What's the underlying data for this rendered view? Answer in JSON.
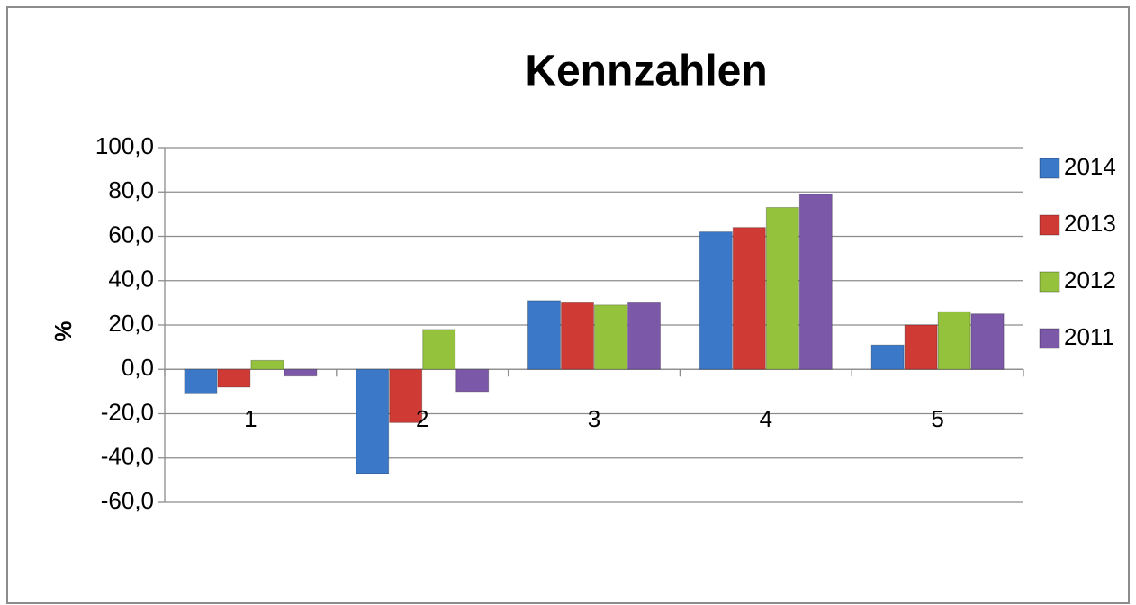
{
  "chart_data": {
    "type": "bar",
    "title": "Kennzahlen",
    "y_label": "%",
    "categories": [
      "1",
      "2",
      "3",
      "4",
      "5"
    ],
    "series": [
      {
        "name": "2014",
        "color": "#3b78c8",
        "values": [
          -11,
          -47,
          31,
          62,
          11
        ]
      },
      {
        "name": "2013",
        "color": "#cf3a35",
        "values": [
          -8,
          -24,
          30,
          64,
          20
        ]
      },
      {
        "name": "2012",
        "color": "#94c23d",
        "values": [
          4,
          18,
          29,
          73,
          26
        ]
      },
      {
        "name": "2011",
        "color": "#7b58a8",
        "values": [
          -3,
          -10,
          30,
          79,
          25
        ]
      }
    ],
    "ylim": [
      -60,
      100
    ],
    "yticks": [
      {
        "value": -60,
        "label": "-60,0"
      },
      {
        "value": -40,
        "label": "-40,0"
      },
      {
        "value": -20,
        "label": "-20,0"
      },
      {
        "value": 0,
        "label": "0,0"
      },
      {
        "value": 20,
        "label": "20,0"
      },
      {
        "value": 40,
        "label": "40,0"
      },
      {
        "value": 60,
        "label": "60,0"
      },
      {
        "value": 80,
        "label": "80,0"
      },
      {
        "value": 100,
        "label": "100,0"
      }
    ],
    "grid": true,
    "legend": "right"
  }
}
